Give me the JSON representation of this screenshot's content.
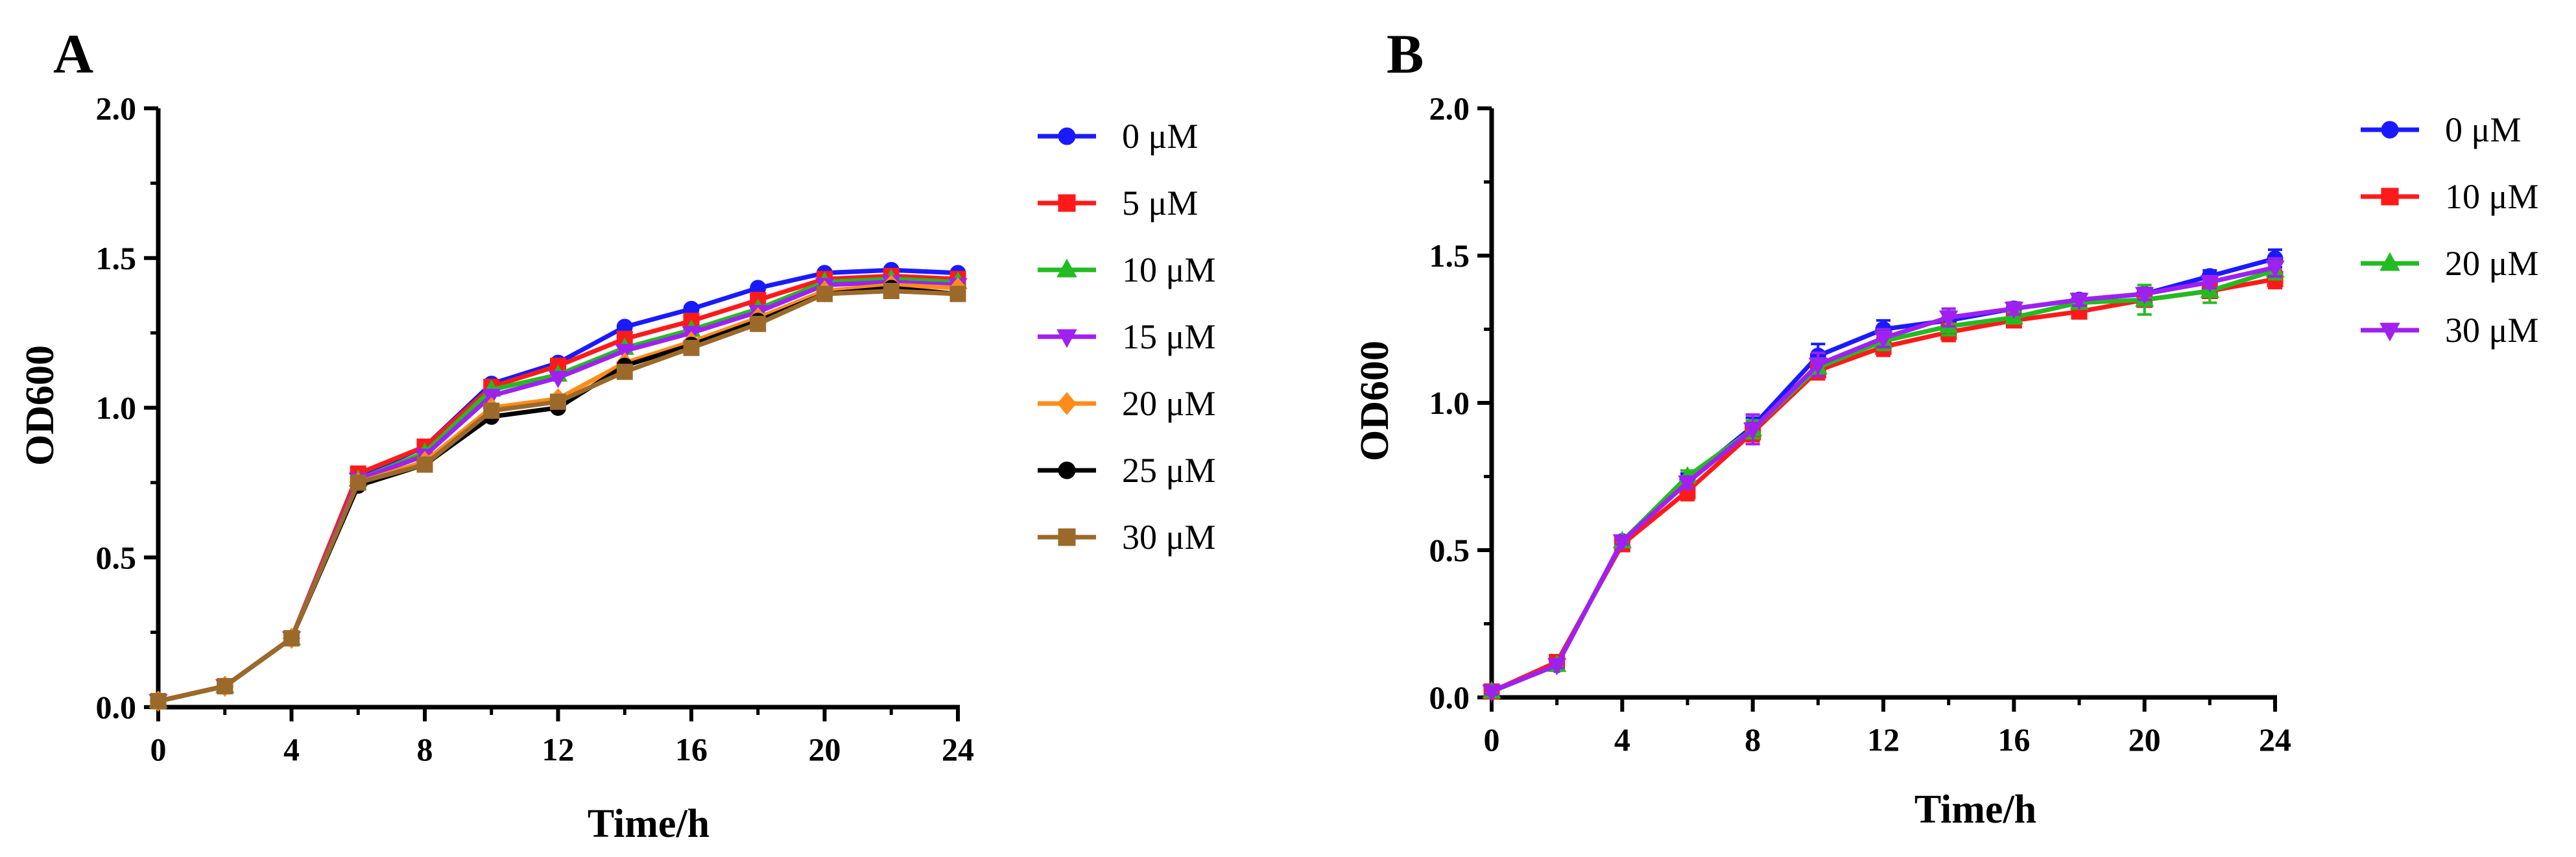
{
  "chart_data": [
    {
      "type": "line",
      "panel": "A",
      "title": "",
      "xlabel": "Time/h",
      "ylabel": "OD600",
      "xlim": [
        0,
        24
      ],
      "ylim": [
        0,
        2.0
      ],
      "xticks": [
        0,
        4,
        8,
        12,
        16,
        20,
        24
      ],
      "yticks": [
        0.0,
        0.5,
        1.0,
        1.5,
        2.0
      ],
      "ytick_labels": [
        "0.0",
        "0.5",
        "1.0",
        "1.5",
        "2.0"
      ],
      "legend_position": "right",
      "x": [
        0,
        2,
        4,
        6,
        8,
        10,
        12,
        14,
        16,
        18,
        20,
        22,
        24
      ],
      "series": [
        {
          "name": "0 μM",
          "color": "#1a1aff",
          "marker": "circle",
          "values": [
            0.02,
            0.07,
            0.23,
            0.77,
            0.87,
            1.08,
            1.15,
            1.27,
            1.33,
            1.4,
            1.45,
            1.46,
            1.45
          ]
        },
        {
          "name": "5 μM",
          "color": "#ff1a1a",
          "marker": "square",
          "values": [
            0.02,
            0.07,
            0.23,
            0.78,
            0.87,
            1.07,
            1.14,
            1.23,
            1.29,
            1.36,
            1.43,
            1.44,
            1.43
          ]
        },
        {
          "name": "10 μM",
          "color": "#22bb22",
          "marker": "triangle-up",
          "values": [
            0.02,
            0.07,
            0.23,
            0.76,
            0.85,
            1.06,
            1.11,
            1.2,
            1.26,
            1.33,
            1.42,
            1.43,
            1.42
          ]
        },
        {
          "name": "15 μM",
          "color": "#a020f0",
          "marker": "triangle-down",
          "values": [
            0.02,
            0.07,
            0.23,
            0.76,
            0.84,
            1.04,
            1.1,
            1.19,
            1.25,
            1.32,
            1.41,
            1.42,
            1.41
          ]
        },
        {
          "name": "20 μM",
          "color": "#ff8c1a",
          "marker": "diamond",
          "values": [
            0.02,
            0.07,
            0.23,
            0.75,
            0.82,
            1.0,
            1.03,
            1.15,
            1.22,
            1.3,
            1.39,
            1.41,
            1.4
          ]
        },
        {
          "name": "25 μM",
          "color": "#000000",
          "marker": "circle",
          "values": [
            0.02,
            0.07,
            0.23,
            0.74,
            0.81,
            0.97,
            1.0,
            1.14,
            1.21,
            1.29,
            1.38,
            1.4,
            1.38
          ]
        },
        {
          "name": "30 μM",
          "color": "#9b6a2a",
          "marker": "square",
          "values": [
            0.02,
            0.07,
            0.23,
            0.75,
            0.81,
            0.99,
            1.02,
            1.12,
            1.2,
            1.28,
            1.38,
            1.39,
            1.38
          ]
        }
      ]
    },
    {
      "type": "line",
      "panel": "B",
      "title": "",
      "xlabel": "Time/h",
      "ylabel": "OD600",
      "xlim": [
        0,
        24
      ],
      "ylim": [
        0,
        2.0
      ],
      "xticks": [
        0,
        4,
        8,
        12,
        16,
        20,
        24
      ],
      "yticks": [
        0.0,
        0.5,
        1.0,
        1.5,
        2.0
      ],
      "ytick_labels": [
        "0.0",
        "0.5",
        "1.0",
        "1.5",
        "2.0"
      ],
      "legend_position": "right",
      "x": [
        0,
        2,
        4,
        6,
        8,
        10,
        12,
        14,
        16,
        18,
        20,
        22,
        24
      ],
      "series": [
        {
          "name": "0 μM",
          "color": "#1a1aff",
          "marker": "circle",
          "values": [
            0.02,
            0.11,
            0.53,
            0.74,
            0.92,
            1.16,
            1.25,
            1.28,
            1.32,
            1.35,
            1.37,
            1.43,
            1.49
          ],
          "errors": [
            0.01,
            0.01,
            0.01,
            0.02,
            0.03,
            0.04,
            0.03,
            0.03,
            0.02,
            0.02,
            0.02,
            0.02,
            0.03
          ]
        },
        {
          "name": "10 μM",
          "color": "#ff1a1a",
          "marker": "square",
          "values": [
            0.02,
            0.12,
            0.52,
            0.7,
            0.9,
            1.11,
            1.19,
            1.24,
            1.28,
            1.31,
            1.35,
            1.38,
            1.42
          ],
          "errors": [
            0.01,
            0.01,
            0.02,
            0.03,
            0.03,
            0.03,
            0.03,
            0.03,
            0.02,
            0.02,
            0.02,
            0.02,
            0.03
          ]
        },
        {
          "name": "20 μM",
          "color": "#22bb22",
          "marker": "triangle-up",
          "values": [
            0.02,
            0.11,
            0.53,
            0.75,
            0.91,
            1.12,
            1.21,
            1.26,
            1.29,
            1.34,
            1.35,
            1.38,
            1.45
          ],
          "errors": [
            0.01,
            0.01,
            0.01,
            0.02,
            0.03,
            0.03,
            0.03,
            0.03,
            0.02,
            0.02,
            0.05,
            0.04,
            0.03
          ]
        },
        {
          "name": "30 μM",
          "color": "#a020f0",
          "marker": "triangle-down",
          "values": [
            0.02,
            0.11,
            0.53,
            0.73,
            0.91,
            1.13,
            1.22,
            1.29,
            1.32,
            1.35,
            1.37,
            1.41,
            1.46
          ],
          "errors": [
            0.01,
            0.01,
            0.01,
            0.02,
            0.05,
            0.04,
            0.03,
            0.03,
            0.02,
            0.02,
            0.02,
            0.02,
            0.03
          ]
        }
      ]
    }
  ]
}
